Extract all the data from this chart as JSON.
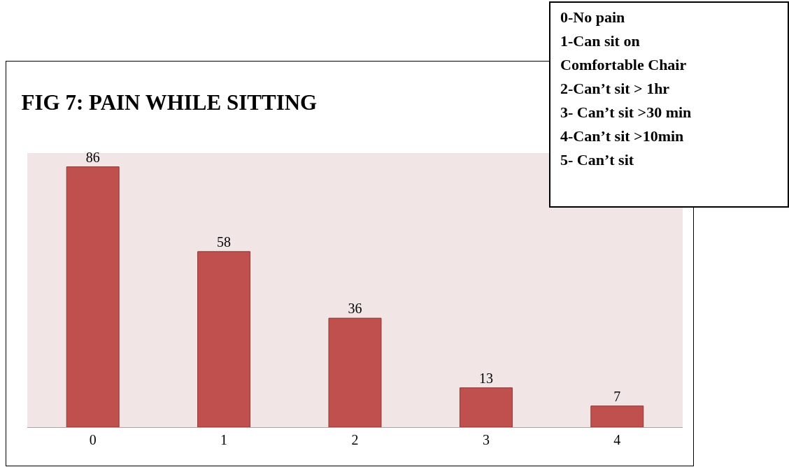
{
  "chart_data": {
    "type": "bar",
    "title": "FIG 7: PAIN WHILE SITTING",
    "categories": [
      "0",
      "1",
      "2",
      "3",
      "4"
    ],
    "values": [
      86,
      58,
      36,
      13,
      7
    ],
    "color": "#c0504d",
    "data_labels": true,
    "annotations": [
      "0-No pain\n1-Can sit on\nComfortable Chair\n2-Can’t sit > 1hr\n3- Can’t sit >30 min\n4-Can’t sit >10min\n5- Can’t sit"
    ]
  }
}
